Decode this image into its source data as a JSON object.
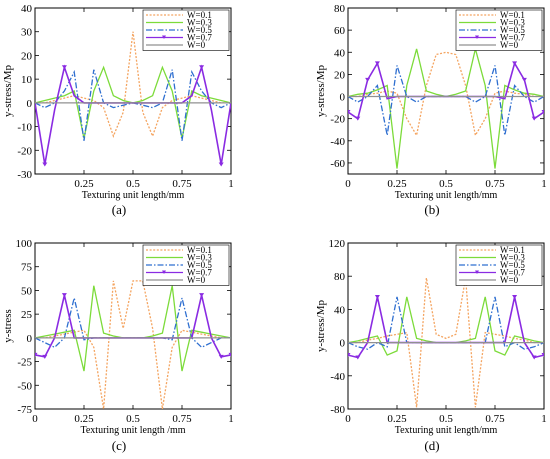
{
  "colors": {
    "W=0.1": "#f4a460",
    "W=0.3": "#7cdb3a",
    "W=0.5": "#2f6fd0",
    "W=0.7": "#8a2be2",
    "W=0": "#909090"
  },
  "chart_data": [
    {
      "type": "line",
      "panel_label": "(a)",
      "xlabel": "Texturing unit length/mm",
      "ylabel": "y-stress/Mp",
      "xlim": [
        0,
        1
      ],
      "ylim": [
        -30,
        40
      ],
      "xticks": [
        "0.25",
        "0.5",
        "0.75",
        "1"
      ],
      "yticks": [
        "-30",
        "-20",
        "-10",
        "0",
        "10",
        "20",
        "30",
        "40"
      ],
      "ytick_values": [
        -30,
        -20,
        -10,
        0,
        10,
        20,
        30,
        40
      ],
      "legend_position": "top-right",
      "x": [
        0,
        0.05,
        0.1,
        0.15,
        0.2,
        0.25,
        0.3,
        0.35,
        0.4,
        0.45,
        0.5,
        0.55,
        0.6,
        0.65,
        0.7,
        0.75,
        0.8,
        0.85,
        0.9,
        0.95,
        1
      ],
      "series": [
        {
          "name": "W=0.1",
          "style": "dotted",
          "values": [
            0,
            0,
            1,
            2,
            3,
            2,
            1,
            -2,
            -14,
            -4,
            30,
            -4,
            -14,
            -2,
            1,
            2,
            3,
            2,
            1,
            0,
            0
          ]
        },
        {
          "name": "W=0.3",
          "style": "solid",
          "values": [
            0,
            1,
            2,
            3,
            5,
            -15,
            5,
            15,
            3,
            1,
            0,
            1,
            3,
            15,
            5,
            -15,
            5,
            3,
            2,
            1,
            0
          ]
        },
        {
          "name": "W=0.5",
          "style": "dashdot",
          "values": [
            0,
            -2,
            0,
            5,
            13,
            -16,
            14,
            0,
            -2,
            -1,
            0,
            -1,
            -2,
            0,
            14,
            -16,
            13,
            5,
            0,
            -2,
            0
          ]
        },
        {
          "name": "W=0.7",
          "style": "solid-marker",
          "values": [
            0,
            -26,
            -3,
            15,
            3,
            0,
            0,
            0,
            0,
            0,
            0,
            0,
            0,
            0,
            0,
            0,
            3,
            15,
            -3,
            -26,
            0
          ]
        },
        {
          "name": "W=0",
          "style": "solid",
          "values": [
            0,
            0,
            0,
            0,
            0,
            0,
            0,
            0,
            0,
            0,
            0,
            0,
            0,
            0,
            0,
            0,
            0,
            0,
            0,
            0,
            0
          ]
        }
      ]
    },
    {
      "type": "line",
      "panel_label": "(b)",
      "xlabel": "Texturing unit length/mm",
      "ylabel": "y-stress/Mp",
      "xlim": [
        0,
        1
      ],
      "ylim": [
        -70,
        80
      ],
      "xticks": [
        "0",
        "0.25",
        "0.5",
        "0.75",
        "1"
      ],
      "yticks": [
        "-60",
        "-40",
        "-20",
        "0",
        "20",
        "40",
        "60",
        "80"
      ],
      "ytick_values": [
        -60,
        -40,
        -20,
        0,
        20,
        40,
        60,
        80
      ],
      "legend_position": "top-right",
      "x": [
        0,
        0.05,
        0.1,
        0.15,
        0.2,
        0.25,
        0.3,
        0.35,
        0.4,
        0.45,
        0.5,
        0.55,
        0.6,
        0.65,
        0.7,
        0.75,
        0.8,
        0.85,
        0.9,
        0.95,
        1
      ],
      "series": [
        {
          "name": "W=0.1",
          "style": "dotted",
          "values": [
            0,
            0,
            2,
            3,
            5,
            3,
            -20,
            -35,
            10,
            38,
            40,
            38,
            10,
            -35,
            -20,
            3,
            5,
            3,
            2,
            0,
            0
          ]
        },
        {
          "name": "W=0.3",
          "style": "solid",
          "values": [
            0,
            2,
            3,
            6,
            10,
            -65,
            10,
            43,
            5,
            2,
            0,
            2,
            5,
            43,
            10,
            -65,
            10,
            6,
            3,
            2,
            0
          ]
        },
        {
          "name": "W=0.5",
          "style": "dashdot",
          "values": [
            0,
            -5,
            0,
            10,
            -35,
            28,
            0,
            -5,
            0,
            0,
            0,
            0,
            0,
            -5,
            0,
            28,
            -35,
            10,
            0,
            -5,
            0
          ]
        },
        {
          "name": "W=0.7",
          "style": "solid-marker",
          "values": [
            -14,
            -20,
            15,
            30,
            -2,
            0,
            0,
            0,
            0,
            0,
            0,
            0,
            0,
            0,
            0,
            0,
            -2,
            30,
            15,
            -20,
            -14
          ]
        },
        {
          "name": "W=0",
          "style": "solid",
          "values": [
            0,
            0,
            0,
            0,
            0,
            0,
            0,
            0,
            0,
            0,
            0,
            0,
            0,
            0,
            0,
            0,
            0,
            0,
            0,
            0,
            0
          ]
        }
      ]
    },
    {
      "type": "line",
      "panel_label": "(c)",
      "xlabel": "Texturing unit length /mm",
      "ylabel": "y-stress",
      "xlim": [
        0,
        1
      ],
      "ylim": [
        -75,
        100
      ],
      "xticks": [
        "0",
        "0.25",
        "0.5",
        "0.75",
        "1"
      ],
      "yticks": [
        "-75",
        "-50",
        "-25",
        "0",
        "25",
        "50",
        "75",
        "100"
      ],
      "ytick_values": [
        -75,
        -50,
        -25,
        0,
        25,
        50,
        75,
        100
      ],
      "legend_position": "top-right",
      "x": [
        0,
        0.05,
        0.1,
        0.15,
        0.2,
        0.25,
        0.3,
        0.35,
        0.4,
        0.45,
        0.5,
        0.55,
        0.6,
        0.65,
        0.7,
        0.75,
        0.8,
        0.85,
        0.9,
        0.95,
        1
      ],
      "series": [
        {
          "name": "W=0.1",
          "style": "dotted",
          "values": [
            0,
            0,
            2,
            4,
            6,
            8,
            -10,
            -75,
            60,
            10,
            60,
            60,
            10,
            -75,
            -10,
            8,
            6,
            4,
            2,
            0,
            0
          ]
        },
        {
          "name": "W=0.3",
          "style": "solid",
          "values": [
            0,
            2,
            4,
            6,
            8,
            -35,
            55,
            5,
            2,
            0,
            0,
            0,
            2,
            5,
            55,
            -35,
            8,
            6,
            4,
            2,
            0
          ]
        },
        {
          "name": "W=0.5",
          "style": "dashdot",
          "values": [
            0,
            -5,
            -10,
            0,
            42,
            -2,
            0,
            0,
            0,
            0,
            0,
            0,
            0,
            0,
            -2,
            42,
            0,
            -10,
            -5,
            0,
            0
          ]
        },
        {
          "name": "W=0.7",
          "style": "solid-marker",
          "values": [
            -18,
            -20,
            0,
            45,
            0,
            0,
            0,
            0,
            0,
            0,
            0,
            0,
            0,
            0,
            0,
            0,
            0,
            45,
            0,
            -20,
            -18
          ]
        },
        {
          "name": "W=0",
          "style": "solid",
          "values": [
            0,
            0,
            0,
            0,
            0,
            0,
            0,
            0,
            0,
            0,
            0,
            0,
            0,
            0,
            0,
            0,
            0,
            0,
            0,
            0,
            0
          ]
        }
      ]
    },
    {
      "type": "line",
      "panel_label": "(d)",
      "xlabel": "Texturing unit length/mm",
      "ylabel": "y-stress/Mp",
      "xlim": [
        0,
        1
      ],
      "ylim": [
        -80,
        120
      ],
      "xticks": [
        "0",
        "0.25",
        "0.5",
        "0.75",
        "1"
      ],
      "yticks": [
        "-80",
        "-40",
        "0",
        "40",
        "80",
        "120"
      ],
      "ytick_values": [
        -80,
        -40,
        0,
        40,
        80,
        120
      ],
      "legend_position": "top-right",
      "x": [
        0,
        0.05,
        0.1,
        0.15,
        0.2,
        0.25,
        0.3,
        0.35,
        0.4,
        0.45,
        0.5,
        0.55,
        0.6,
        0.65,
        0.7,
        0.75,
        0.8,
        0.85,
        0.9,
        0.95,
        1
      ],
      "series": [
        {
          "name": "W=0.1",
          "style": "dotted",
          "values": [
            0,
            0,
            3,
            5,
            8,
            10,
            12,
            -78,
            78,
            10,
            5,
            10,
            78,
            -78,
            12,
            10,
            8,
            5,
            3,
            0,
            0
          ]
        },
        {
          "name": "W=0.3",
          "style": "solid",
          "values": [
            0,
            2,
            5,
            8,
            -15,
            -10,
            55,
            5,
            2,
            0,
            0,
            0,
            2,
            5,
            55,
            -10,
            -15,
            8,
            5,
            2,
            0
          ]
        },
        {
          "name": "W=0.5",
          "style": "dashdot",
          "values": [
            0,
            -5,
            -8,
            0,
            -5,
            55,
            0,
            0,
            0,
            0,
            0,
            0,
            0,
            0,
            0,
            55,
            -5,
            0,
            -8,
            -5,
            0
          ]
        },
        {
          "name": "W=0.7",
          "style": "solid-marker",
          "values": [
            -15,
            -18,
            0,
            55,
            0,
            0,
            0,
            0,
            0,
            0,
            0,
            0,
            0,
            0,
            0,
            0,
            0,
            55,
            0,
            -18,
            -15
          ]
        },
        {
          "name": "W=0",
          "style": "solid",
          "values": [
            0,
            0,
            0,
            0,
            0,
            0,
            0,
            0,
            0,
            0,
            0,
            0,
            0,
            0,
            0,
            0,
            0,
            0,
            0,
            0,
            0
          ]
        }
      ]
    }
  ]
}
